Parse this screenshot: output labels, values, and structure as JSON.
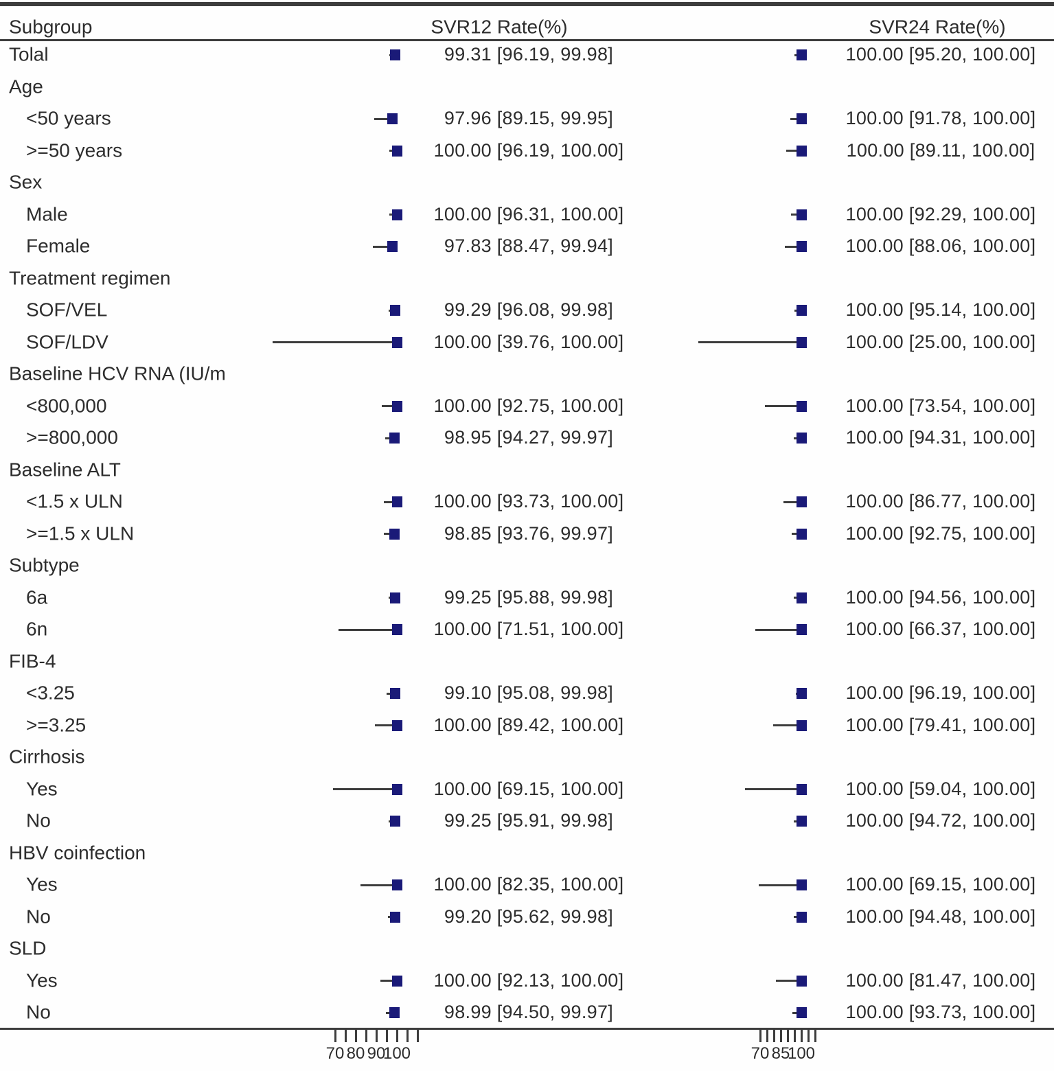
{
  "figure": {
    "subgroup_header": "Subgroup",
    "col1_header": "SVR12 Rate(%)",
    "col2_header": "SVR24 Rate(%)"
  },
  "colors": {
    "marker": "#1a1a78",
    "line": "#3d3d3d",
    "text": "#2d2d2d"
  },
  "chart_data": {
    "type": "forest",
    "unit": "percent",
    "value_format": "est [lo, hi]",
    "columns": [
      {
        "key": "svr12",
        "header": "SVR12 Rate(%)",
        "axis_ticks": [
          70,
          75,
          80,
          85,
          90,
          95,
          100,
          105,
          110
        ],
        "axis_labeled_ticks": [
          70,
          80,
          90,
          100
        ]
      },
      {
        "key": "svr24",
        "header": "SVR24 Rate(%)",
        "axis_ticks": [
          70,
          75,
          80,
          85,
          90,
          95,
          100,
          105,
          110
        ],
        "axis_labeled_ticks": [
          70,
          85,
          100
        ]
      }
    ],
    "rows": [
      {
        "label": "Tolal",
        "indent": false,
        "svr12": {
          "est": 99.31,
          "lo": 96.19,
          "hi": 99.98
        },
        "svr24": {
          "est": 100.0,
          "lo": 95.2,
          "hi": 100.0
        }
      },
      {
        "label": "Age",
        "indent": false
      },
      {
        "label": "<50 years",
        "indent": true,
        "svr12": {
          "est": 97.96,
          "lo": 89.15,
          "hi": 99.95
        },
        "svr24": {
          "est": 100.0,
          "lo": 91.78,
          "hi": 100.0
        }
      },
      {
        "label": ">=50 years",
        "indent": true,
        "svr12": {
          "est": 100.0,
          "lo": 96.19,
          "hi": 100.0
        },
        "svr24": {
          "est": 100.0,
          "lo": 89.11,
          "hi": 100.0
        }
      },
      {
        "label": "Sex",
        "indent": false
      },
      {
        "label": "Male",
        "indent": true,
        "svr12": {
          "est": 100.0,
          "lo": 96.31,
          "hi": 100.0
        },
        "svr24": {
          "est": 100.0,
          "lo": 92.29,
          "hi": 100.0
        }
      },
      {
        "label": "Female",
        "indent": true,
        "svr12": {
          "est": 97.83,
          "lo": 88.47,
          "hi": 99.94
        },
        "svr24": {
          "est": 100.0,
          "lo": 88.06,
          "hi": 100.0
        }
      },
      {
        "label": "Treatment regimen",
        "indent": false
      },
      {
        "label": "SOF/VEL",
        "indent": true,
        "svr12": {
          "est": 99.29,
          "lo": 96.08,
          "hi": 99.98
        },
        "svr24": {
          "est": 100.0,
          "lo": 95.14,
          "hi": 100.0
        }
      },
      {
        "label": "SOF/LDV",
        "indent": true,
        "svr12": {
          "est": 100.0,
          "lo": 39.76,
          "hi": 100.0
        },
        "svr24": {
          "est": 100.0,
          "lo": 25.0,
          "hi": 100.0
        }
      },
      {
        "label": "Baseline HCV RNA (IU/m",
        "indent": false
      },
      {
        "label": "<800,000",
        "indent": true,
        "svr12": {
          "est": 100.0,
          "lo": 92.75,
          "hi": 100.0
        },
        "svr24": {
          "est": 100.0,
          "lo": 73.54,
          "hi": 100.0
        }
      },
      {
        "label": ">=800,000",
        "indent": true,
        "svr12": {
          "est": 98.95,
          "lo": 94.27,
          "hi": 99.97
        },
        "svr24": {
          "est": 100.0,
          "lo": 94.31,
          "hi": 100.0
        }
      },
      {
        "label": "Baseline ALT",
        "indent": false
      },
      {
        "label": "<1.5 x ULN",
        "indent": true,
        "svr12": {
          "est": 100.0,
          "lo": 93.73,
          "hi": 100.0
        },
        "svr24": {
          "est": 100.0,
          "lo": 86.77,
          "hi": 100.0
        }
      },
      {
        "label": ">=1.5 x ULN",
        "indent": true,
        "svr12": {
          "est": 98.85,
          "lo": 93.76,
          "hi": 99.97
        },
        "svr24": {
          "est": 100.0,
          "lo": 92.75,
          "hi": 100.0
        }
      },
      {
        "label": "Subtype",
        "indent": false
      },
      {
        "label": "6a",
        "indent": true,
        "svr12": {
          "est": 99.25,
          "lo": 95.88,
          "hi": 99.98
        },
        "svr24": {
          "est": 100.0,
          "lo": 94.56,
          "hi": 100.0
        }
      },
      {
        "label": "6n",
        "indent": true,
        "svr12": {
          "est": 100.0,
          "lo": 71.51,
          "hi": 100.0
        },
        "svr24": {
          "est": 100.0,
          "lo": 66.37,
          "hi": 100.0
        }
      },
      {
        "label": "FIB-4",
        "indent": false
      },
      {
        "label": "<3.25",
        "indent": true,
        "svr12": {
          "est": 99.1,
          "lo": 95.08,
          "hi": 99.98
        },
        "svr24": {
          "est": 100.0,
          "lo": 96.19,
          "hi": 100.0
        }
      },
      {
        "label": ">=3.25",
        "indent": true,
        "svr12": {
          "est": 100.0,
          "lo": 89.42,
          "hi": 100.0
        },
        "svr24": {
          "est": 100.0,
          "lo": 79.41,
          "hi": 100.0
        }
      },
      {
        "label": "Cirrhosis",
        "indent": false
      },
      {
        "label": "Yes",
        "indent": true,
        "svr12": {
          "est": 100.0,
          "lo": 69.15,
          "hi": 100.0
        },
        "svr24": {
          "est": 100.0,
          "lo": 59.04,
          "hi": 100.0
        }
      },
      {
        "label": "No",
        "indent": true,
        "svr12": {
          "est": 99.25,
          "lo": 95.91,
          "hi": 99.98
        },
        "svr24": {
          "est": 100.0,
          "lo": 94.72,
          "hi": 100.0
        }
      },
      {
        "label": "HBV coinfection",
        "indent": false
      },
      {
        "label": "Yes",
        "indent": true,
        "svr12": {
          "est": 100.0,
          "lo": 82.35,
          "hi": 100.0
        },
        "svr24": {
          "est": 100.0,
          "lo": 69.15,
          "hi": 100.0
        }
      },
      {
        "label": "No",
        "indent": true,
        "svr12": {
          "est": 99.2,
          "lo": 95.62,
          "hi": 99.98
        },
        "svr24": {
          "est": 100.0,
          "lo": 94.48,
          "hi": 100.0
        }
      },
      {
        "label": "SLD",
        "indent": false
      },
      {
        "label": "Yes",
        "indent": true,
        "svr12": {
          "est": 100.0,
          "lo": 92.13,
          "hi": 100.0
        },
        "svr24": {
          "est": 100.0,
          "lo": 81.47,
          "hi": 100.0
        }
      },
      {
        "label": "No",
        "indent": true,
        "svr12": {
          "est": 98.99,
          "lo": 94.5,
          "hi": 99.97
        },
        "svr24": {
          "est": 100.0,
          "lo": 93.73,
          "hi": 100.0
        }
      }
    ]
  }
}
